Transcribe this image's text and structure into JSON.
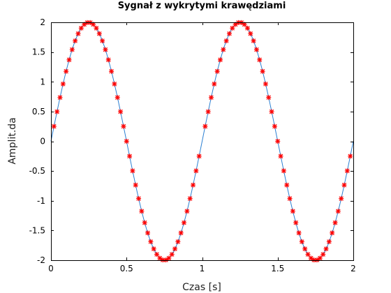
{
  "chart_data": {
    "type": "line",
    "title": "Sygnał z wykrytymi krawędziami",
    "xlabel": "Czas [s]",
    "ylabel": "Amplit.da",
    "xlim": [
      0,
      2
    ],
    "ylim": [
      -2,
      2
    ],
    "xticks": [
      0,
      0.5,
      1,
      1.5,
      2
    ],
    "xtick_labels": [
      "0",
      "0.5",
      "1",
      "1.5",
      "2"
    ],
    "yticks": [
      2,
      1.5,
      1,
      0.5,
      0,
      -0.5,
      -1,
      -1.5,
      -2
    ],
    "ytick_labels": [
      "2",
      "1.5",
      "1",
      "0.5",
      "0",
      "-0.5",
      "-1",
      "-1.5",
      "-2"
    ],
    "grid": false,
    "series": [
      {
        "style": "line",
        "color": "#2a7fd2",
        "function": "2*sin(2*pi*t)",
        "amplitude": 2,
        "frequency_hz": 1,
        "x_range": [
          0,
          2
        ]
      },
      {
        "style": "markers",
        "marker": "asterisk",
        "color": "#ff0000",
        "function": "2*sin(2*pi*t)",
        "x_start": 0.02,
        "x_end": 1.98,
        "x_step": 0.02,
        "excluded_x": [
          1.0
        ]
      }
    ]
  }
}
